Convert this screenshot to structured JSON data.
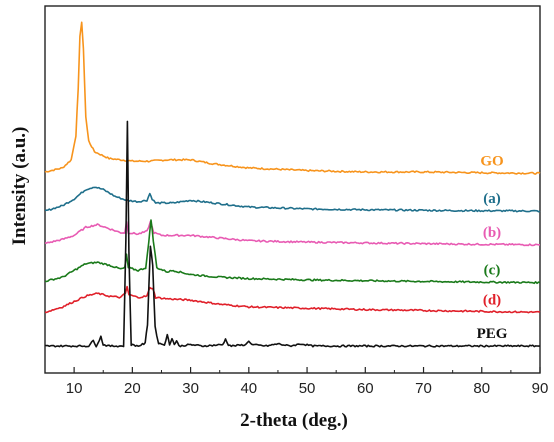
{
  "chart_data": {
    "type": "line",
    "title": "",
    "xlabel": "2-theta (deg.)",
    "ylabel": "Intensity (a.u.)",
    "xlim": [
      5,
      90
    ],
    "x_ticks": [
      "10",
      "20",
      "30",
      "40",
      "50",
      "60",
      "70",
      "80",
      "90"
    ],
    "y_ticks": "none",
    "grid": false,
    "legend": "labels at right end of each curve",
    "series": [
      {
        "name": "GO",
        "color": "#f7941d",
        "baseline": 7.4,
        "points": [
          [
            5,
            7.45
          ],
          [
            8,
            7.6
          ],
          [
            9.5,
            7.9
          ],
          [
            10.3,
            8.8
          ],
          [
            10.7,
            10.5
          ],
          [
            11.0,
            12.5
          ],
          [
            11.3,
            13.0
          ],
          [
            11.6,
            12.0
          ],
          [
            12.0,
            9.5
          ],
          [
            12.5,
            8.6
          ],
          [
            13.5,
            8.2
          ],
          [
            16,
            7.95
          ],
          [
            20,
            7.85
          ],
          [
            23,
            7.85
          ],
          [
            26,
            7.9
          ],
          [
            30,
            7.9
          ],
          [
            34,
            7.75
          ],
          [
            40,
            7.6
          ],
          [
            50,
            7.5
          ],
          [
            60,
            7.45
          ],
          [
            70,
            7.45
          ],
          [
            80,
            7.42
          ],
          [
            90,
            7.4
          ]
        ]
      },
      {
        "name": "(a)",
        "color": "#1f6f8b",
        "baseline": 6.0,
        "points": [
          [
            5,
            6.0
          ],
          [
            8,
            6.2
          ],
          [
            10,
            6.45
          ],
          [
            12,
            6.8
          ],
          [
            13.5,
            6.9
          ],
          [
            15,
            6.8
          ],
          [
            17,
            6.55
          ],
          [
            19,
            6.4
          ],
          [
            21,
            6.35
          ],
          [
            22.5,
            6.4
          ],
          [
            23.0,
            6.65
          ],
          [
            23.4,
            6.45
          ],
          [
            24,
            6.3
          ],
          [
            27,
            6.3
          ],
          [
            30,
            6.4
          ],
          [
            34,
            6.3
          ],
          [
            40,
            6.15
          ],
          [
            50,
            6.08
          ],
          [
            60,
            6.05
          ],
          [
            75,
            6.02
          ],
          [
            90,
            6.0
          ]
        ]
      },
      {
        "name": "(b)",
        "color": "#e85bb3",
        "baseline": 4.75,
        "points": [
          [
            5,
            4.8
          ],
          [
            8,
            4.95
          ],
          [
            10,
            5.1
          ],
          [
            12,
            5.4
          ],
          [
            14,
            5.5
          ],
          [
            16,
            5.35
          ],
          [
            18,
            5.2
          ],
          [
            18.7,
            5.2
          ],
          [
            19.0,
            5.6
          ],
          [
            19.3,
            5.2
          ],
          [
            21,
            5.15
          ],
          [
            22.5,
            5.25
          ],
          [
            23.1,
            5.6
          ],
          [
            23.7,
            5.2
          ],
          [
            25,
            5.1
          ],
          [
            30,
            5.1
          ],
          [
            35,
            5.0
          ],
          [
            40,
            4.9
          ],
          [
            50,
            4.85
          ],
          [
            60,
            4.82
          ],
          [
            75,
            4.78
          ],
          [
            90,
            4.75
          ]
        ]
      },
      {
        "name": "(c)",
        "color": "#1a7a1a",
        "baseline": 3.35,
        "points": [
          [
            5,
            3.4
          ],
          [
            8,
            3.55
          ],
          [
            10,
            3.8
          ],
          [
            12,
            4.05
          ],
          [
            14,
            4.1
          ],
          [
            16,
            4.0
          ],
          [
            18,
            3.85
          ],
          [
            18.7,
            3.9
          ],
          [
            19.0,
            4.4
          ],
          [
            19.3,
            3.9
          ],
          [
            21,
            3.8
          ],
          [
            22.3,
            3.9
          ],
          [
            22.8,
            4.8
          ],
          [
            23.2,
            5.7
          ],
          [
            23.6,
            4.9
          ],
          [
            24.2,
            3.9
          ],
          [
            26,
            3.75
          ],
          [
            27,
            3.8
          ],
          [
            30,
            3.65
          ],
          [
            35,
            3.55
          ],
          [
            40,
            3.5
          ],
          [
            50,
            3.45
          ],
          [
            60,
            3.42
          ],
          [
            75,
            3.38
          ],
          [
            90,
            3.35
          ]
        ]
      },
      {
        "name": "(d)",
        "color": "#e0202a",
        "baseline": 2.25,
        "points": [
          [
            5,
            2.25
          ],
          [
            8,
            2.45
          ],
          [
            10,
            2.65
          ],
          [
            12,
            2.85
          ],
          [
            14,
            2.95
          ],
          [
            16,
            2.85
          ],
          [
            18,
            2.8
          ],
          [
            18.8,
            2.95
          ],
          [
            19.1,
            3.2
          ],
          [
            19.4,
            2.9
          ],
          [
            21,
            2.8
          ],
          [
            22.5,
            2.85
          ],
          [
            23.0,
            3.15
          ],
          [
            23.5,
            3.15
          ],
          [
            24,
            2.8
          ],
          [
            26,
            2.75
          ],
          [
            30,
            2.7
          ],
          [
            35,
            2.55
          ],
          [
            40,
            2.45
          ],
          [
            50,
            2.4
          ],
          [
            60,
            2.35
          ],
          [
            75,
            2.3
          ],
          [
            90,
            2.25
          ]
        ]
      },
      {
        "name": "PEG",
        "color": "#111111",
        "baseline": 1.0,
        "points": [
          [
            5,
            1.0
          ],
          [
            10,
            1.0
          ],
          [
            12.5,
            1.0
          ],
          [
            13.3,
            1.2
          ],
          [
            13.8,
            1.0
          ],
          [
            14.6,
            1.35
          ],
          [
            15.0,
            1.05
          ],
          [
            16,
            1.0
          ],
          [
            18.5,
            1.0
          ],
          [
            18.9,
            5.0
          ],
          [
            19.15,
            9.3
          ],
          [
            19.4,
            4.5
          ],
          [
            19.8,
            1.05
          ],
          [
            21,
            1.0
          ],
          [
            22.2,
            1.1
          ],
          [
            22.6,
            1.8
          ],
          [
            23.1,
            4.7
          ],
          [
            23.5,
            4.0
          ],
          [
            23.9,
            1.7
          ],
          [
            24.5,
            1.1
          ],
          [
            25.5,
            1.05
          ],
          [
            26.0,
            1.4
          ],
          [
            26.4,
            1.05
          ],
          [
            26.8,
            1.3
          ],
          [
            27.2,
            1.05
          ],
          [
            27.6,
            1.2
          ],
          [
            28.0,
            1.0
          ],
          [
            30,
            1.05
          ],
          [
            32,
            1.0
          ],
          [
            35.5,
            1.05
          ],
          [
            36.0,
            1.25
          ],
          [
            36.5,
            1.05
          ],
          [
            37,
            1.0
          ],
          [
            39.5,
            1.05
          ],
          [
            40.0,
            1.2
          ],
          [
            40.5,
            1.05
          ],
          [
            43,
            1.0
          ],
          [
            45,
            1.08
          ],
          [
            47,
            1.0
          ],
          [
            49,
            1.08
          ],
          [
            51,
            1.0
          ],
          [
            60,
            1.0
          ],
          [
            75,
            1.0
          ],
          [
            90,
            1.0
          ]
        ]
      }
    ]
  }
}
